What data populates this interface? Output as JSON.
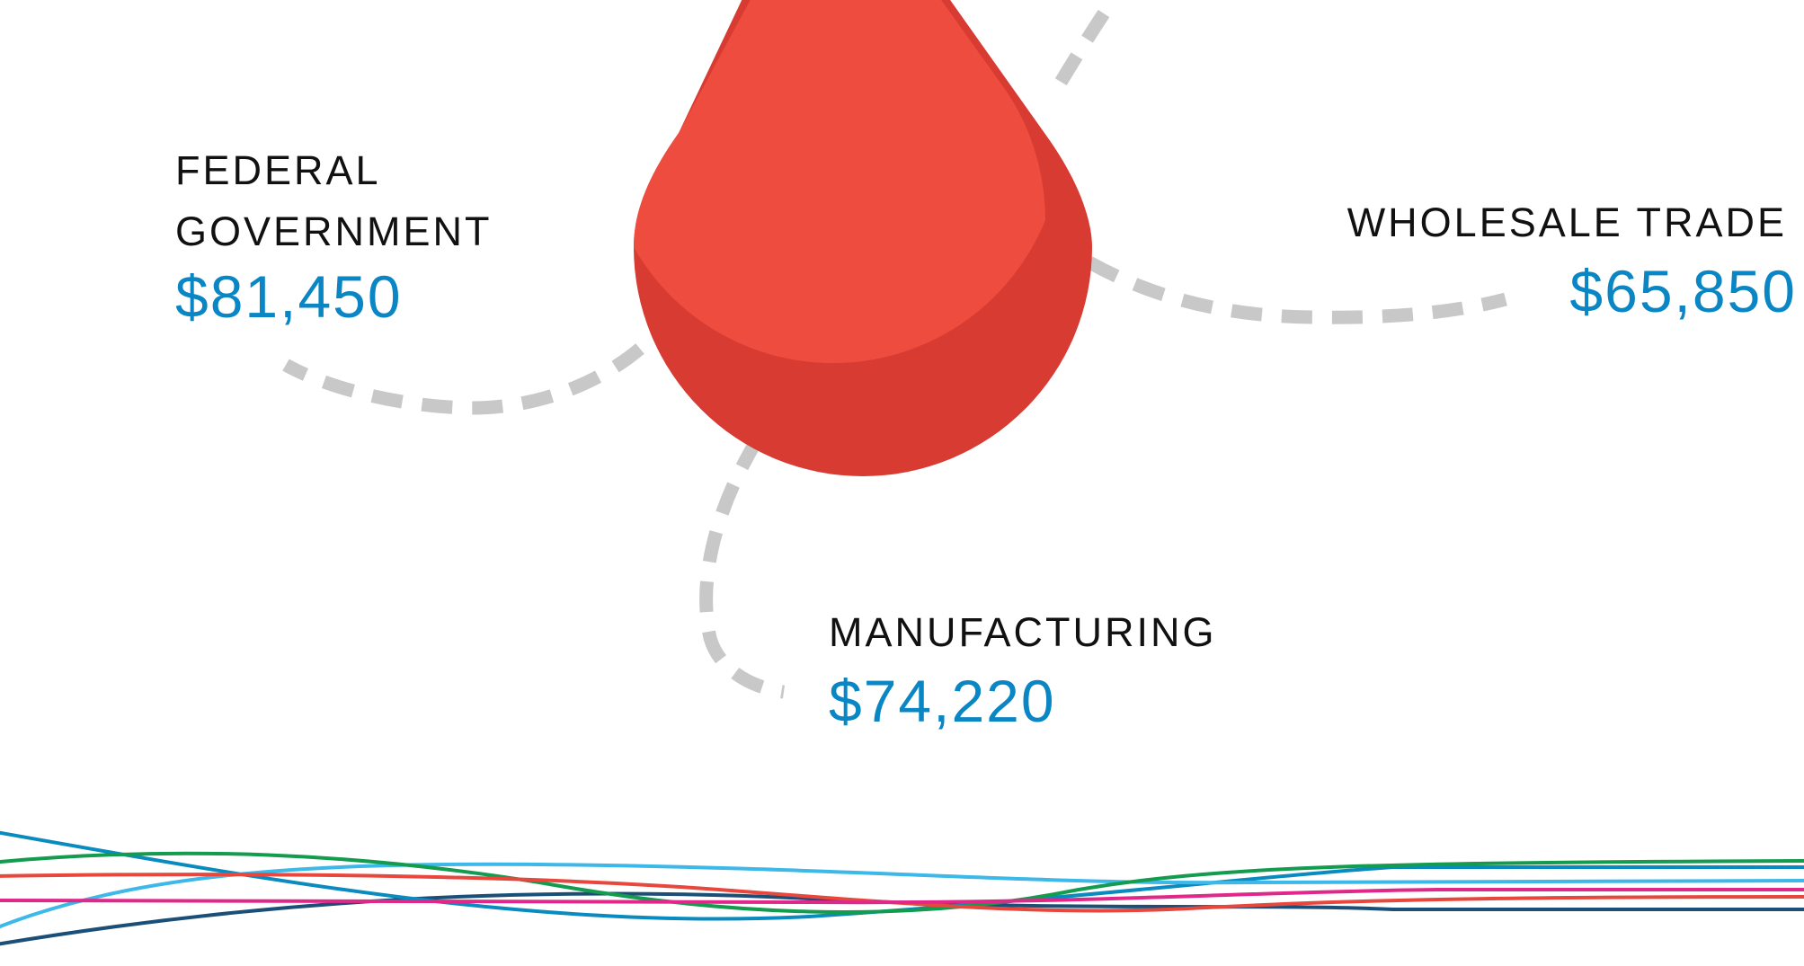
{
  "callouts": {
    "federal": {
      "label_line1": "FEDERAL",
      "label_line2": "GOVERNMENT",
      "amount": "$81,450"
    },
    "wholesale": {
      "label": "WHOLESALE TRADE",
      "amount": "$65,850"
    },
    "manufacturing": {
      "label": "MANUFACTURING",
      "amount": "$74,220"
    }
  },
  "colors": {
    "drop": "#ee4c3e",
    "drop_shadow": "#d73b31",
    "connector": "#c8c8c8",
    "amount_text": "#0a86c4",
    "label_text": "#111111",
    "lines": [
      "#0a8bbf",
      "#139b4e",
      "#e8473d",
      "#3db8e8",
      "#e0288a",
      "#1b4f78"
    ]
  },
  "icons": {
    "drop": "water-drop-icon"
  }
}
